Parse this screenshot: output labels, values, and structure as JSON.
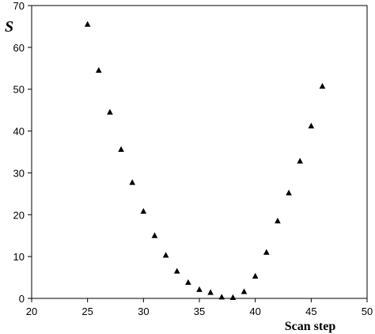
{
  "chart_data": {
    "type": "scatter",
    "xlabel": "Scan step",
    "ylabel": "S",
    "xlim": [
      20,
      50
    ],
    "ylim": [
      0,
      70
    ],
    "x_ticks": [
      "20",
      "25",
      "30",
      "35",
      "40",
      "45",
      "50"
    ],
    "y_ticks": [
      "0",
      "10",
      "20",
      "30",
      "40",
      "50",
      "60",
      "70"
    ],
    "grid": false,
    "marker": "triangle",
    "marker_color": "#000000",
    "series": [
      {
        "x": [
          25,
          26,
          27,
          28,
          29,
          30,
          31,
          32,
          33,
          34,
          35,
          36,
          37,
          38,
          39,
          40,
          41,
          42,
          43,
          44,
          45,
          46
        ],
        "y": [
          65.5,
          54.5,
          44.5,
          35.6,
          27.7,
          20.8,
          15.0,
          10.3,
          6.5,
          3.8,
          2.1,
          1.4,
          0.3,
          0.2,
          1.6,
          5.3,
          11.0,
          18.5,
          25.2,
          32.8,
          41.2,
          50.7
        ]
      }
    ]
  }
}
